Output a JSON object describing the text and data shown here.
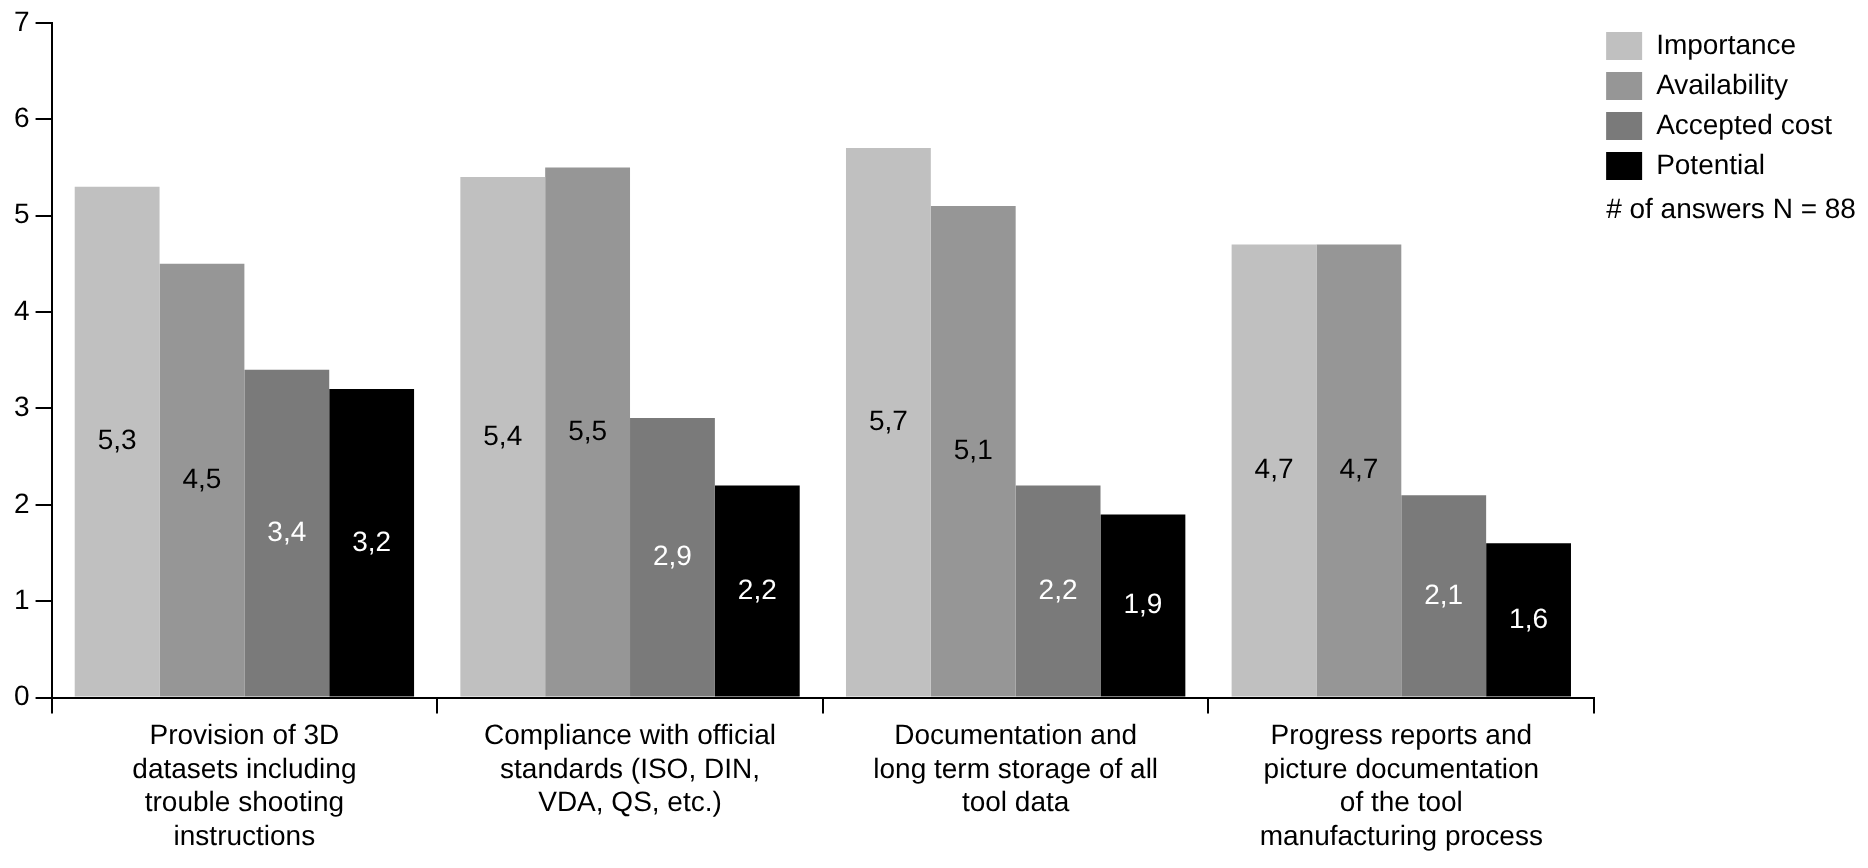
{
  "chart_data": {
    "type": "bar",
    "categories": [
      "Provision of 3D datasets including trouble shooting instructions",
      "Compliance with official standards (ISO, DIN, VDA, QS, etc.)",
      "Documentation and long term storage of all tool data",
      "Progress reports and picture documentation of the tool manufacturing process"
    ],
    "series": [
      {
        "name": "Importance",
        "color": "#c0c0c0",
        "values": [
          5.3,
          5.4,
          5.7,
          4.7
        ],
        "value_labels": [
          "5,3",
          "5,4",
          "5,7",
          "4,7"
        ]
      },
      {
        "name": "Availability",
        "color": "#969696",
        "values": [
          4.5,
          5.5,
          5.1,
          4.7
        ],
        "value_labels": [
          "4,5",
          "5,5",
          "5,1",
          "4,7"
        ]
      },
      {
        "name": "Accepted cost",
        "color": "#7a7a7a",
        "values": [
          3.4,
          2.9,
          2.2,
          2.1
        ],
        "value_labels": [
          "3,4",
          "2,9",
          "2,2",
          "2,1"
        ]
      },
      {
        "name": "Potential",
        "color": "#000000",
        "values": [
          3.2,
          2.2,
          1.9,
          1.6
        ],
        "value_labels": [
          "3,2",
          "2,2",
          "1,9",
          "1,6"
        ]
      }
    ],
    "ylim": [
      0,
      7
    ],
    "yticks": [
      0,
      1,
      2,
      3,
      4,
      5,
      6,
      7
    ],
    "grid": false,
    "legend": "top right",
    "annotations": [
      "# of answers N = 88"
    ]
  }
}
